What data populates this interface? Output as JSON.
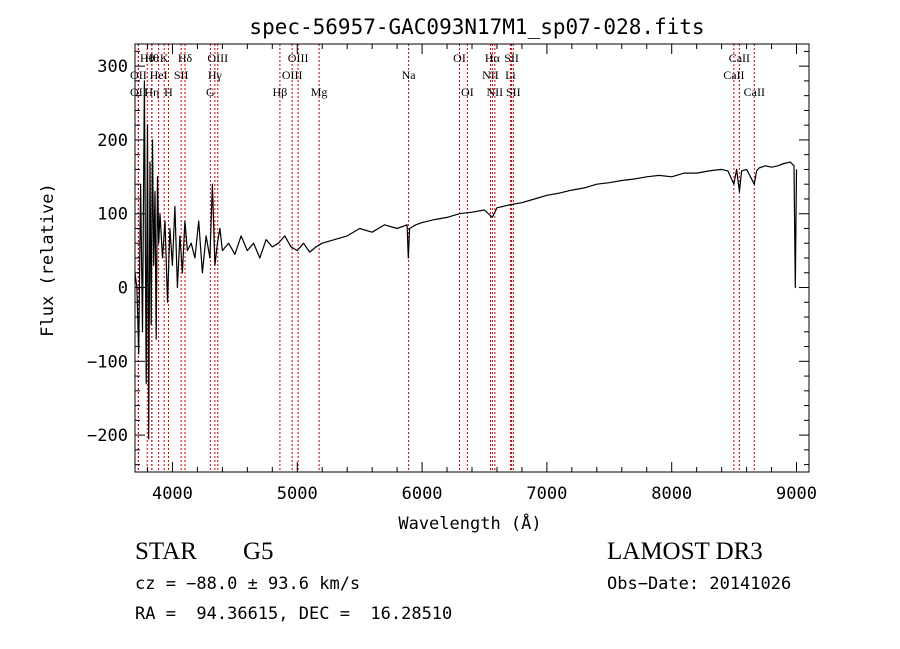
{
  "chart_data": {
    "type": "line",
    "title": "spec-56957-GAC093N17M1_sp07-028.fits",
    "xlabel": "Wavelength (Å)",
    "ylabel": "Flux (relative)",
    "xlim": [
      3700,
      9100
    ],
    "ylim": [
      -250,
      330
    ],
    "x_ticks": [
      4000,
      5000,
      6000,
      7000,
      8000,
      9000
    ],
    "x_tick_labels": [
      "4000",
      "5000",
      "6000",
      "7000",
      "8000",
      "9000"
    ],
    "y_ticks": [
      -200,
      -100,
      0,
      100,
      200,
      300
    ],
    "y_tick_labels": [
      "−200",
      "−100",
      "0",
      "100",
      "200",
      "300"
    ],
    "grid": false,
    "series": [
      {
        "name": "flux",
        "x": [
          3700,
          3715,
          3730,
          3745,
          3760,
          3775,
          3790,
          3800,
          3810,
          3820,
          3830,
          3840,
          3850,
          3860,
          3870,
          3880,
          3890,
          3900,
          3920,
          3940,
          3960,
          3980,
          4000,
          4020,
          4040,
          4060,
          4080,
          4100,
          4120,
          4150,
          4180,
          4210,
          4240,
          4270,
          4300,
          4320,
          4340,
          4360,
          4380,
          4400,
          4450,
          4500,
          4550,
          4600,
          4650,
          4700,
          4750,
          4800,
          4850,
          4900,
          4950,
          5000,
          5050,
          5100,
          5150,
          5200,
          5300,
          5400,
          5500,
          5600,
          5700,
          5800,
          5880,
          5890,
          5900,
          5950,
          6000,
          6100,
          6200,
          6300,
          6400,
          6500,
          6563,
          6600,
          6700,
          6800,
          6900,
          7000,
          7100,
          7200,
          7300,
          7400,
          7500,
          7600,
          7700,
          7800,
          7900,
          8000,
          8100,
          8200,
          8300,
          8400,
          8450,
          8498,
          8520,
          8542,
          8560,
          8600,
          8662,
          8680,
          8700,
          8750,
          8800,
          8850,
          8900,
          8950,
          8980,
          8990,
          9000
        ],
        "y": [
          20,
          0,
          -90,
          140,
          -60,
          280,
          -130,
          220,
          -205,
          170,
          -50,
          200,
          30,
          130,
          -70,
          150,
          60,
          100,
          40,
          90,
          -20,
          80,
          30,
          110,
          0,
          70,
          20,
          90,
          50,
          60,
          40,
          90,
          20,
          70,
          40,
          140,
          30,
          60,
          80,
          50,
          60,
          45,
          70,
          50,
          60,
          40,
          65,
          55,
          60,
          70,
          55,
          50,
          60,
          48,
          55,
          60,
          65,
          70,
          80,
          75,
          85,
          80,
          85,
          40,
          80,
          85,
          88,
          92,
          95,
          100,
          102,
          105,
          95,
          108,
          112,
          115,
          120,
          125,
          128,
          132,
          135,
          140,
          142,
          145,
          147,
          150,
          152,
          150,
          155,
          155,
          158,
          160,
          158,
          140,
          160,
          130,
          158,
          160,
          140,
          158,
          162,
          165,
          163,
          165,
          168,
          170,
          165,
          0,
          160
        ]
      }
    ],
    "lines": [
      {
        "x": 3798,
        "label": "Hθ",
        "row": 1
      },
      {
        "x": 3835,
        "label": "Hθ",
        "row": 1
      },
      {
        "x": 3934,
        "label": "K",
        "row": 1
      },
      {
        "x": 4101,
        "label": "Hδ",
        "row": 1
      },
      {
        "x": 4363,
        "label": "OIII",
        "row": 1
      },
      {
        "x": 5007,
        "label": "OIII",
        "row": 1
      },
      {
        "x": 6300,
        "label": "OI",
        "row": 1
      },
      {
        "x": 6563,
        "label": "Hα",
        "row": 1
      },
      {
        "x": 6717,
        "label": "SII",
        "row": 1
      },
      {
        "x": 8542,
        "label": "CaII",
        "row": 1
      },
      {
        "x": 3727,
        "label": "OII",
        "row": 2
      },
      {
        "x": 3889,
        "label": "HeI",
        "row": 2
      },
      {
        "x": 4070,
        "label": "SII",
        "row": 2
      },
      {
        "x": 4340,
        "label": "Hγ",
        "row": 2
      },
      {
        "x": 4959,
        "label": "OIII",
        "row": 2
      },
      {
        "x": 5892,
        "label": "Na",
        "row": 2
      },
      {
        "x": 6548,
        "label": "NII",
        "row": 2
      },
      {
        "x": 6708,
        "label": "Li",
        "row": 2
      },
      {
        "x": 8498,
        "label": "CaII",
        "row": 2
      },
      {
        "x": 3727,
        "label": "OII",
        "row": 3
      },
      {
        "x": 3835,
        "label": "Hη",
        "row": 3
      },
      {
        "x": 3968,
        "label": "H",
        "row": 3
      },
      {
        "x": 4304,
        "label": "G",
        "row": 3
      },
      {
        "x": 4861,
        "label": "Hβ",
        "row": 3
      },
      {
        "x": 5175,
        "label": "Mg",
        "row": 3
      },
      {
        "x": 6363,
        "label": "OI",
        "row": 3
      },
      {
        "x": 6583,
        "label": "NII",
        "row": 3
      },
      {
        "x": 6731,
        "label": "SII",
        "row": 3
      },
      {
        "x": 8662,
        "label": "CaII",
        "row": 3
      }
    ]
  },
  "info": {
    "class": "STAR",
    "subclass": "G5",
    "survey": "LAMOST DR3",
    "cz": "cz = −88.0 ± 93.6 km/s",
    "obs_date": "Obs−Date: 20141026",
    "radec": "RA =  94.36615, DEC =  16.28510"
  }
}
